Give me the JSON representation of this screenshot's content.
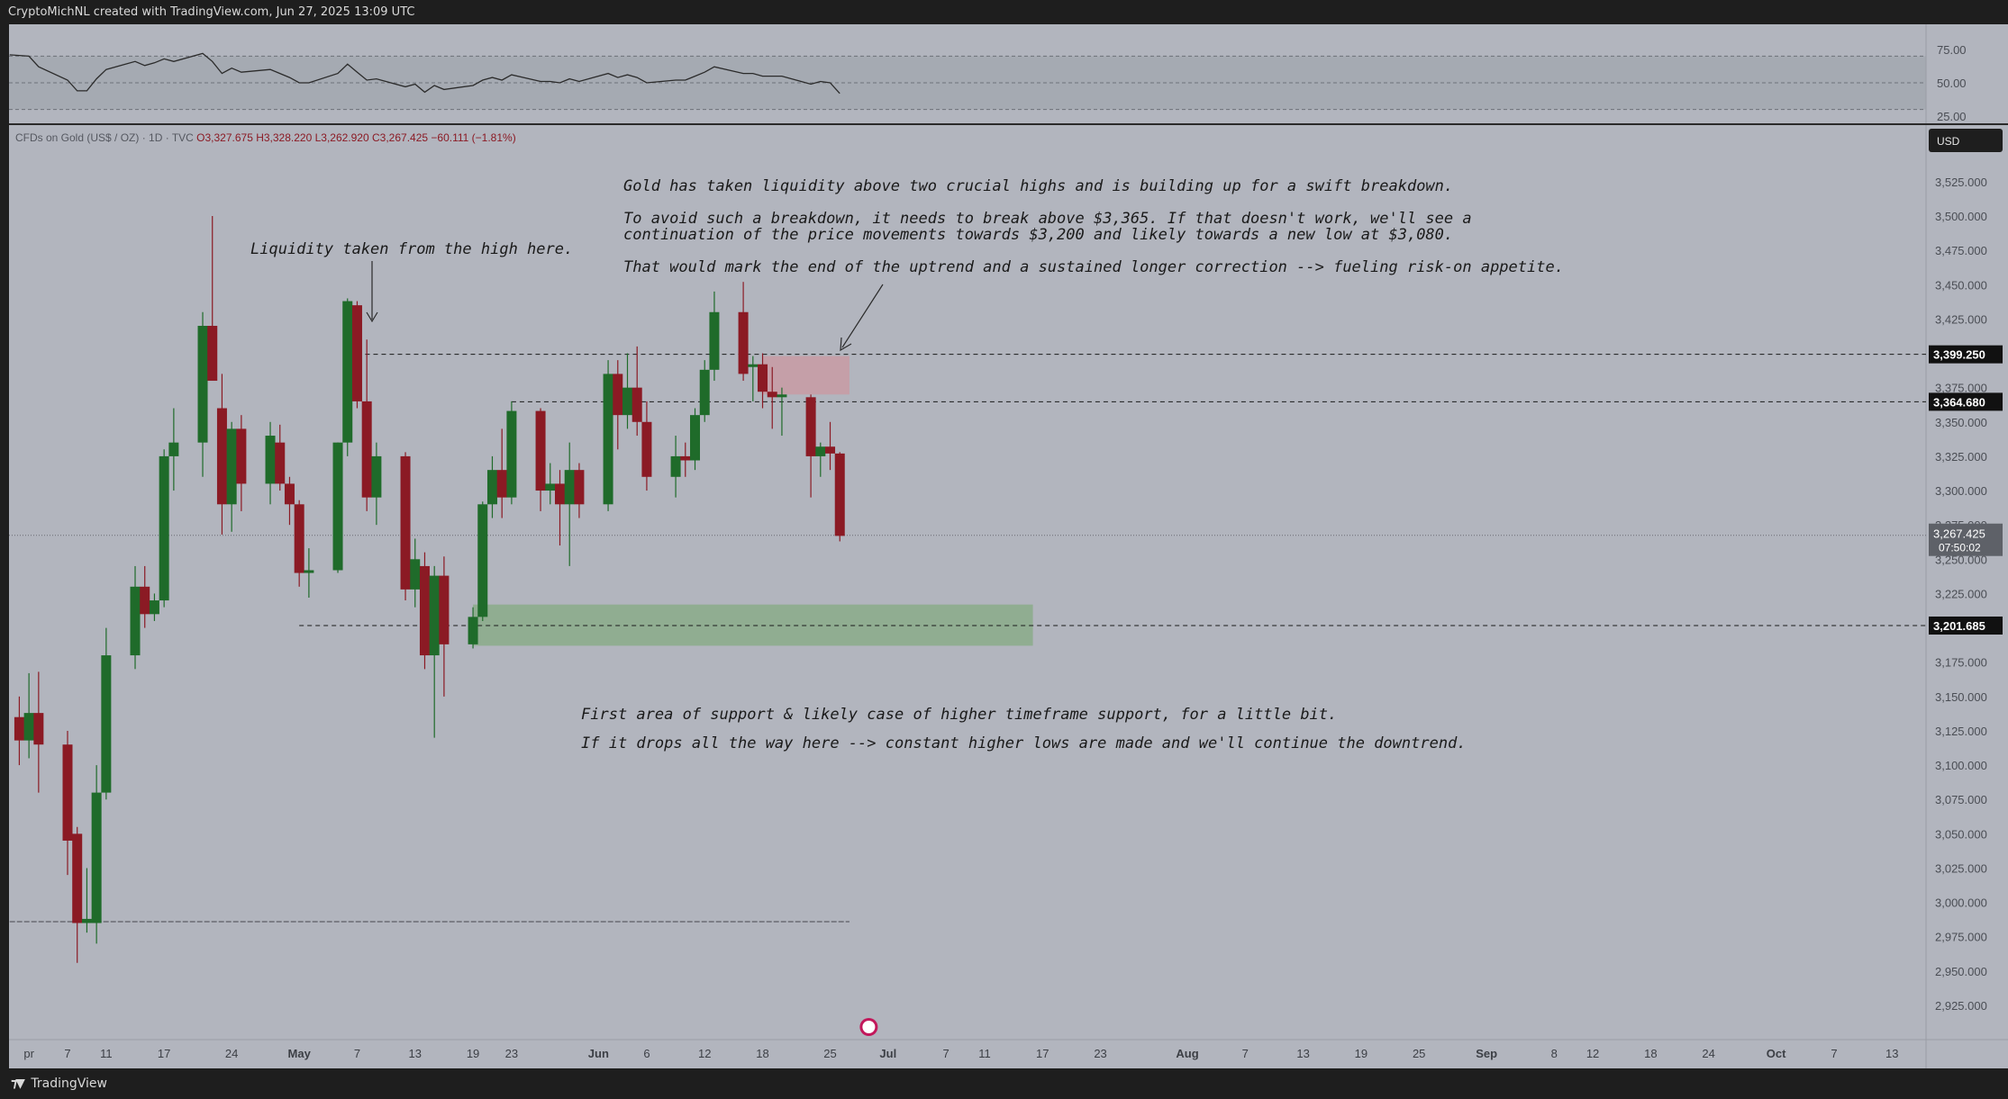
{
  "header": {
    "attribution": "CryptoMichNL created with TradingView.com, Jun 27, 2025 13:09 UTC"
  },
  "footer": {
    "brand_icon": "tradingview-logo-icon",
    "brand_label": "TradingView"
  },
  "symbol_info": {
    "name": "CFDs on Gold (US$ / OZ) · 1D · TVC",
    "open": "O3,327.675",
    "high": "H3,328.220",
    "low": "L3,262.920",
    "close": "C3,267.425",
    "change": "−60.111 (−1.81%)"
  },
  "currency_button": "USD",
  "indicator": {
    "ticks": [
      "75.00",
      "50.00",
      "25.00"
    ],
    "upper": 70,
    "lower": 30,
    "line_color": "#2b2b2b",
    "band_color": "#9aa0a7"
  },
  "colors": {
    "background": "#b2b5be",
    "bull": "#1f6b2a",
    "bear": "#8b1a24",
    "resistance_zone": "#c99aa3",
    "support_zone": "#8aab8a"
  },
  "annotations": {
    "liquidity_note": "Liquidity taken from the high here.",
    "main_line1": "Gold has taken liquidity above two crucial highs and is building up for a swift breakdown.",
    "main_line2": "To avoid such a breakdown, it needs to break above $3,365. If that doesn't work, we'll see a",
    "main_line3": "continuation of the price movements towards $3,200 and likely towards a new low at $3,080.",
    "main_line4": "That would mark the end of the uptrend and a sustained longer correction --> fueling risk-on appetite.",
    "support_line1": "First area of support & likely case of higher timeframe support, for a little bit.",
    "support_line2": "If it drops all the way here --> constant higher lows are made and we'll continue the downtrend."
  },
  "chart_data": {
    "type": "candlestick",
    "ylim": [
      2910,
      3560
    ],
    "y_ticks": [
      2925,
      2950,
      2975,
      3000,
      3025,
      3050,
      3075,
      3100,
      3125,
      3150,
      3175,
      3200,
      3225,
      3250,
      3275,
      3300,
      3325,
      3350,
      3375,
      3400,
      3425,
      3450,
      3475,
      3500,
      3525
    ],
    "y_tick_labels": [
      "2,925.000",
      "2,950.000",
      "2,975.000",
      "3,000.000",
      "3,025.000",
      "3,050.000",
      "3,075.000",
      "3,100.000",
      "3,125.000",
      "3,150.000",
      "3,175.000",
      "3,200.000",
      "3,225.000",
      "3,250.000",
      "3,275.000",
      "3,300.000",
      "3,325.000",
      "3,350.000",
      "3,375.000",
      "3,400.000",
      "3,425.000",
      "3,450.000",
      "3,475.000",
      "3,500.000",
      "3,525.000"
    ],
    "x_ticks": [
      {
        "label": "pr",
        "date": "2025-04-03",
        "bold": false
      },
      {
        "label": "7",
        "date": "2025-04-07",
        "bold": false
      },
      {
        "label": "11",
        "date": "2025-04-11",
        "bold": false
      },
      {
        "label": "17",
        "date": "2025-04-17",
        "bold": false
      },
      {
        "label": "24",
        "date": "2025-04-24",
        "bold": false
      },
      {
        "label": "May",
        "date": "2025-05-01",
        "bold": true
      },
      {
        "label": "7",
        "date": "2025-05-07",
        "bold": false
      },
      {
        "label": "13",
        "date": "2025-05-13",
        "bold": false
      },
      {
        "label": "19",
        "date": "2025-05-19",
        "bold": false
      },
      {
        "label": "23",
        "date": "2025-05-23",
        "bold": false
      },
      {
        "label": "Jun",
        "date": "2025-06-01",
        "bold": true
      },
      {
        "label": "6",
        "date": "2025-06-06",
        "bold": false
      },
      {
        "label": "12",
        "date": "2025-06-12",
        "bold": false
      },
      {
        "label": "18",
        "date": "2025-06-18",
        "bold": false
      },
      {
        "label": "25",
        "date": "2025-06-25",
        "bold": false
      },
      {
        "label": "Jul",
        "date": "2025-07-01",
        "bold": true
      },
      {
        "label": "7",
        "date": "2025-07-07",
        "bold": false
      },
      {
        "label": "11",
        "date": "2025-07-11",
        "bold": false
      },
      {
        "label": "17",
        "date": "2025-07-17",
        "bold": false
      },
      {
        "label": "23",
        "date": "2025-07-23",
        "bold": false
      },
      {
        "label": "Aug",
        "date": "2025-08-01",
        "bold": true
      },
      {
        "label": "7",
        "date": "2025-08-07",
        "bold": false
      },
      {
        "label": "13",
        "date": "2025-08-13",
        "bold": false
      },
      {
        "label": "19",
        "date": "2025-08-19",
        "bold": false
      },
      {
        "label": "25",
        "date": "2025-08-25",
        "bold": false
      },
      {
        "label": "Sep",
        "date": "2025-09-01",
        "bold": true
      },
      {
        "label": "8",
        "date": "2025-09-08",
        "bold": false
      },
      {
        "label": "12",
        "date": "2025-09-12",
        "bold": false
      },
      {
        "label": "18",
        "date": "2025-09-18",
        "bold": false
      },
      {
        "label": "24",
        "date": "2025-09-24",
        "bold": false
      },
      {
        "label": "Oct",
        "date": "2025-10-01",
        "bold": true
      },
      {
        "label": "7",
        "date": "2025-10-07",
        "bold": false
      },
      {
        "label": "13",
        "date": "2025-10-13",
        "bold": false
      }
    ],
    "candles": [
      {
        "date": "2025-04-02",
        "o": 3135,
        "h": 3150,
        "l": 3100,
        "c": 3118
      },
      {
        "date": "2025-04-03",
        "o": 3118,
        "h": 3167,
        "l": 3105,
        "c": 3138
      },
      {
        "date": "2025-04-04",
        "o": 3138,
        "h": 3168,
        "l": 3080,
        "c": 3115
      },
      {
        "date": "2025-04-07",
        "o": 3115,
        "h": 3125,
        "l": 3020,
        "c": 3045
      },
      {
        "date": "2025-04-08",
        "o": 3050,
        "h": 3055,
        "l": 2956,
        "c": 2985
      },
      {
        "date": "2025-04-09",
        "o": 2985,
        "h": 3025,
        "l": 2978,
        "c": 2988
      },
      {
        "date": "2025-04-10",
        "o": 2985,
        "h": 3100,
        "l": 2970,
        "c": 3080
      },
      {
        "date": "2025-04-11",
        "o": 3080,
        "h": 3200,
        "l": 3075,
        "c": 3180
      },
      {
        "date": "2025-04-14",
        "o": 3180,
        "h": 3245,
        "l": 3170,
        "c": 3230
      },
      {
        "date": "2025-04-15",
        "o": 3230,
        "h": 3245,
        "l": 3200,
        "c": 3210
      },
      {
        "date": "2025-04-16",
        "o": 3210,
        "h": 3225,
        "l": 3205,
        "c": 3220
      },
      {
        "date": "2025-04-17",
        "o": 3220,
        "h": 3330,
        "l": 3215,
        "c": 3325
      },
      {
        "date": "2025-04-18",
        "o": 3325,
        "h": 3360,
        "l": 3300,
        "c": 3335
      },
      {
        "date": "2025-04-21",
        "o": 3335,
        "h": 3430,
        "l": 3310,
        "c": 3420
      },
      {
        "date": "2025-04-22",
        "o": 3420,
        "h": 3500,
        "l": 3380,
        "c": 3380
      },
      {
        "date": "2025-04-23",
        "o": 3360,
        "h": 3385,
        "l": 3268,
        "c": 3290
      },
      {
        "date": "2025-04-24",
        "o": 3290,
        "h": 3350,
        "l": 3270,
        "c": 3345
      },
      {
        "date": "2025-04-25",
        "o": 3345,
        "h": 3355,
        "l": 3285,
        "c": 3305
      },
      {
        "date": "2025-04-28",
        "o": 3305,
        "h": 3350,
        "l": 3290,
        "c": 3340
      },
      {
        "date": "2025-04-29",
        "o": 3335,
        "h": 3348,
        "l": 3300,
        "c": 3305
      },
      {
        "date": "2025-04-30",
        "o": 3305,
        "h": 3310,
        "l": 3275,
        "c": 3290
      },
      {
        "date": "2025-05-01",
        "o": 3290,
        "h": 3293,
        "l": 3230,
        "c": 3240
      },
      {
        "date": "2025-05-02",
        "o": 3240,
        "h": 3258,
        "l": 3222,
        "c": 3242
      },
      {
        "date": "2025-05-05",
        "o": 3242,
        "h": 3335,
        "l": 3240,
        "c": 3335
      },
      {
        "date": "2025-05-06",
        "o": 3335,
        "h": 3440,
        "l": 3325,
        "c": 3438
      },
      {
        "date": "2025-05-07",
        "o": 3435,
        "h": 3438,
        "l": 3360,
        "c": 3365
      },
      {
        "date": "2025-05-08",
        "o": 3365,
        "h": 3410,
        "l": 3285,
        "c": 3295
      },
      {
        "date": "2025-05-09",
        "o": 3295,
        "h": 3335,
        "l": 3275,
        "c": 3325
      },
      {
        "date": "2025-05-12",
        "o": 3325,
        "h": 3328,
        "l": 3220,
        "c": 3228
      },
      {
        "date": "2025-05-13",
        "o": 3228,
        "h": 3265,
        "l": 3215,
        "c": 3250
      },
      {
        "date": "2025-05-14",
        "o": 3245,
        "h": 3255,
        "l": 3170,
        "c": 3180
      },
      {
        "date": "2025-05-15",
        "o": 3180,
        "h": 3245,
        "l": 3120,
        "c": 3238
      },
      {
        "date": "2025-05-16",
        "o": 3238,
        "h": 3252,
        "l": 3150,
        "c": 3188
      },
      {
        "date": "2025-05-19",
        "o": 3188,
        "h": 3215,
        "l": 3185,
        "c": 3208
      },
      {
        "date": "2025-05-20",
        "o": 3208,
        "h": 3292,
        "l": 3205,
        "c": 3290
      },
      {
        "date": "2025-05-21",
        "o": 3290,
        "h": 3325,
        "l": 3280,
        "c": 3315
      },
      {
        "date": "2025-05-22",
        "o": 3315,
        "h": 3345,
        "l": 3280,
        "c": 3295
      },
      {
        "date": "2025-05-23",
        "o": 3295,
        "h": 3365,
        "l": 3290,
        "c": 3358
      },
      {
        "date": "2025-05-26",
        "o": 3358,
        "h": 3360,
        "l": 3285,
        "c": 3300
      },
      {
        "date": "2025-05-27",
        "o": 3300,
        "h": 3320,
        "l": 3290,
        "c": 3305
      },
      {
        "date": "2025-05-28",
        "o": 3305,
        "h": 3315,
        "l": 3260,
        "c": 3290
      },
      {
        "date": "2025-05-29",
        "o": 3290,
        "h": 3335,
        "l": 3245,
        "c": 3315
      },
      {
        "date": "2025-05-30",
        "o": 3315,
        "h": 3320,
        "l": 3280,
        "c": 3290
      },
      {
        "date": "2025-06-02",
        "o": 3290,
        "h": 3395,
        "l": 3285,
        "c": 3385
      },
      {
        "date": "2025-06-03",
        "o": 3385,
        "h": 3395,
        "l": 3330,
        "c": 3355
      },
      {
        "date": "2025-06-04",
        "o": 3355,
        "h": 3400,
        "l": 3345,
        "c": 3375
      },
      {
        "date": "2025-06-05",
        "o": 3375,
        "h": 3405,
        "l": 3340,
        "c": 3350
      },
      {
        "date": "2025-06-06",
        "o": 3350,
        "h": 3365,
        "l": 3300,
        "c": 3310
      },
      {
        "date": "2025-06-09",
        "o": 3310,
        "h": 3340,
        "l": 3295,
        "c": 3325
      },
      {
        "date": "2025-06-10",
        "o": 3325,
        "h": 3335,
        "l": 3310,
        "c": 3322
      },
      {
        "date": "2025-06-11",
        "o": 3322,
        "h": 3360,
        "l": 3315,
        "c": 3355
      },
      {
        "date": "2025-06-12",
        "o": 3355,
        "h": 3395,
        "l": 3350,
        "c": 3388
      },
      {
        "date": "2025-06-13",
        "o": 3388,
        "h": 3445,
        "l": 3380,
        "c": 3430
      },
      {
        "date": "2025-06-16",
        "o": 3430,
        "h": 3452,
        "l": 3380,
        "c": 3385
      },
      {
        "date": "2025-06-17",
        "o": 3390,
        "h": 3398,
        "l": 3365,
        "c": 3392
      },
      {
        "date": "2025-06-18",
        "o": 3392,
        "h": 3400,
        "l": 3360,
        "c": 3372
      },
      {
        "date": "2025-06-19",
        "o": 3372,
        "h": 3390,
        "l": 3345,
        "c": 3368
      },
      {
        "date": "2025-06-20",
        "o": 3368,
        "h": 3375,
        "l": 3340,
        "c": 3370
      },
      {
        "date": "2025-06-23",
        "o": 3368,
        "h": 3370,
        "l": 3295,
        "c": 3325
      },
      {
        "date": "2025-06-24",
        "o": 3325,
        "h": 3335,
        "l": 3310,
        "c": 3332
      },
      {
        "date": "2025-06-25",
        "o": 3332,
        "h": 3350,
        "l": 3315,
        "c": 3327
      },
      {
        "date": "2025-06-26",
        "o": 3327,
        "h": 3328,
        "l": 3263,
        "c": 3267
      }
    ],
    "rsi": [
      {
        "date": "2025-04-01",
        "v": 71
      },
      {
        "date": "2025-04-03",
        "v": 70
      },
      {
        "date": "2025-04-04",
        "v": 62
      },
      {
        "date": "2025-04-07",
        "v": 52
      },
      {
        "date": "2025-04-08",
        "v": 44
      },
      {
        "date": "2025-04-09",
        "v": 44
      },
      {
        "date": "2025-04-10",
        "v": 53
      },
      {
        "date": "2025-04-11",
        "v": 60
      },
      {
        "date": "2025-04-14",
        "v": 66
      },
      {
        "date": "2025-04-15",
        "v": 63
      },
      {
        "date": "2025-04-16",
        "v": 65
      },
      {
        "date": "2025-04-17",
        "v": 68
      },
      {
        "date": "2025-04-18",
        "v": 66
      },
      {
        "date": "2025-04-21",
        "v": 72
      },
      {
        "date": "2025-04-22",
        "v": 66
      },
      {
        "date": "2025-04-23",
        "v": 57
      },
      {
        "date": "2025-04-24",
        "v": 61
      },
      {
        "date": "2025-04-25",
        "v": 58
      },
      {
        "date": "2025-04-28",
        "v": 60
      },
      {
        "date": "2025-04-29",
        "v": 57
      },
      {
        "date": "2025-04-30",
        "v": 54
      },
      {
        "date": "2025-05-01",
        "v": 50
      },
      {
        "date": "2025-05-02",
        "v": 50
      },
      {
        "date": "2025-05-05",
        "v": 57
      },
      {
        "date": "2025-05-06",
        "v": 64
      },
      {
        "date": "2025-05-07",
        "v": 58
      },
      {
        "date": "2025-05-08",
        "v": 52
      },
      {
        "date": "2025-05-09",
        "v": 53
      },
      {
        "date": "2025-05-12",
        "v": 47
      },
      {
        "date": "2025-05-13",
        "v": 49
      },
      {
        "date": "2025-05-14",
        "v": 43
      },
      {
        "date": "2025-05-15",
        "v": 48
      },
      {
        "date": "2025-05-16",
        "v": 45
      },
      {
        "date": "2025-05-19",
        "v": 48
      },
      {
        "date": "2025-05-20",
        "v": 52
      },
      {
        "date": "2025-05-21",
        "v": 54
      },
      {
        "date": "2025-05-22",
        "v": 52
      },
      {
        "date": "2025-05-23",
        "v": 56
      },
      {
        "date": "2025-05-26",
        "v": 51
      },
      {
        "date": "2025-05-27",
        "v": 51
      },
      {
        "date": "2025-05-28",
        "v": 50
      },
      {
        "date": "2025-05-29",
        "v": 53
      },
      {
        "date": "2025-05-30",
        "v": 51
      },
      {
        "date": "2025-06-02",
        "v": 57
      },
      {
        "date": "2025-06-03",
        "v": 54
      },
      {
        "date": "2025-06-04",
        "v": 56
      },
      {
        "date": "2025-06-05",
        "v": 54
      },
      {
        "date": "2025-06-06",
        "v": 50
      },
      {
        "date": "2025-06-09",
        "v": 52
      },
      {
        "date": "2025-06-10",
        "v": 52
      },
      {
        "date": "2025-06-11",
        "v": 55
      },
      {
        "date": "2025-06-12",
        "v": 58
      },
      {
        "date": "2025-06-13",
        "v": 62
      },
      {
        "date": "2025-06-16",
        "v": 57
      },
      {
        "date": "2025-06-17",
        "v": 57
      },
      {
        "date": "2025-06-18",
        "v": 55
      },
      {
        "date": "2025-06-19",
        "v": 55
      },
      {
        "date": "2025-06-20",
        "v": 55
      },
      {
        "date": "2025-06-23",
        "v": 49
      },
      {
        "date": "2025-06-24",
        "v": 51
      },
      {
        "date": "2025-06-25",
        "v": 50
      },
      {
        "date": "2025-06-26",
        "v": 42
      }
    ],
    "levels": [
      {
        "name": "resistance-high",
        "value": 3399.25,
        "label": "3,399.250",
        "from": "2025-05-07"
      },
      {
        "name": "resistance-mid",
        "value": 3364.68,
        "label": "3,364.680",
        "from": "2025-05-23"
      },
      {
        "name": "support",
        "value": 3201.685,
        "label": "3,201.685",
        "from": "2025-05-01"
      },
      {
        "name": "low",
        "value": 2986,
        "from": "2025-04-01",
        "to": "2025-06-27"
      }
    ],
    "last_price": {
      "value": 3267.425,
      "label": "3,267.425",
      "countdown": "07:50:02"
    },
    "zones": [
      {
        "name": "resistance-zone",
        "from": "2025-06-18",
        "to": "2025-06-27",
        "y1": 3370,
        "y2": 3398
      },
      {
        "name": "support-zone",
        "from": "2025-05-19",
        "to": "2025-07-16",
        "y1": 3187,
        "y2": 3217
      }
    ]
  }
}
